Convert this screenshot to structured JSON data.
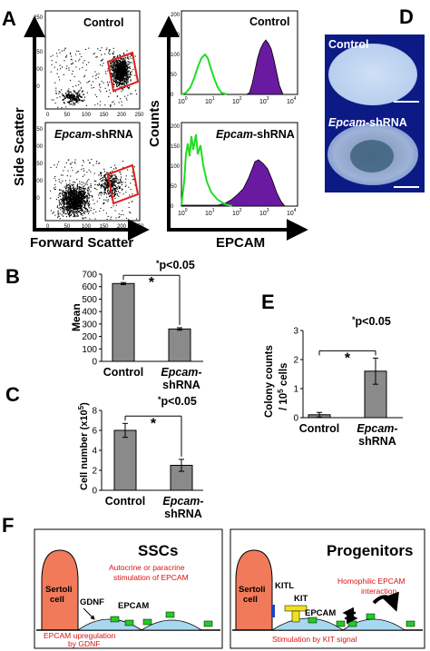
{
  "panels": {
    "A": "A",
    "B": "B",
    "C": "C",
    "D": "D",
    "E": "E",
    "F": "F"
  },
  "scatter": {
    "y_label": "Side Scatter",
    "x_label": "Forward Scatter",
    "top_label": "Control",
    "bottom_label_italic": "Epcam",
    "bottom_label_rest": "-shRNA",
    "ticks": [
      "0",
      "50",
      "100",
      "150",
      "200",
      "250"
    ]
  },
  "histogram": {
    "y_label": "Counts",
    "x_label": "EPCAM",
    "top_label": "Control",
    "bottom_label_italic": "Epcam",
    "bottom_label_rest": "-shRNA",
    "y_ticks": [
      "0",
      "50",
      "100",
      "150",
      "200"
    ],
    "x_ticks": [
      "10",
      "10",
      "10",
      "10",
      "10"
    ],
    "x_exps": [
      "0",
      "1",
      "2",
      "3",
      "4"
    ]
  },
  "photos": {
    "top_label": "Control",
    "bottom_label_italic": "Epcam",
    "bottom_label_rest": "-shRNA"
  },
  "chart_data": [
    {
      "type": "bar",
      "panel": "B",
      "ylabel": "Mean",
      "categories": [
        "Control",
        "Epcam-shRNA"
      ],
      "cat_line1": [
        "Control",
        "Epcam-"
      ],
      "cat_line2": [
        "",
        "shRNA"
      ],
      "values": [
        625,
        260
      ],
      "errors": [
        8,
        10
      ],
      "ylim": [
        0,
        700
      ],
      "yticks": [
        "0",
        "100",
        "200",
        "300",
        "400",
        "500",
        "600",
        "700"
      ],
      "bar_color": "#8a8a8a",
      "annotation": "p<0.05",
      "star": "*"
    },
    {
      "type": "bar",
      "panel": "C",
      "ylabel": "Cell number (x10",
      "ylabel_exp": "5",
      "ylabel_end": ")",
      "categories": [
        "Control",
        "Epcam-shRNA"
      ],
      "cat_line1": [
        "Control",
        "Epcam-"
      ],
      "cat_line2": [
        "",
        "shRNA"
      ],
      "values": [
        6.0,
        2.5
      ],
      "errors": [
        0.7,
        0.6
      ],
      "ylim": [
        0,
        8
      ],
      "yticks": [
        "0",
        "2",
        "4",
        "6",
        "8"
      ],
      "bar_color": "#8a8a8a",
      "annotation": "p<0.05",
      "star": "*"
    },
    {
      "type": "bar",
      "panel": "E",
      "ylabel_line1": "Colony counts",
      "ylabel_line2": "/ 10",
      "ylabel_exp": "5",
      "ylabel_end": " cells",
      "categories": [
        "Control",
        "Epcam-shRNA"
      ],
      "cat_line1": [
        "Control",
        "Epcam-"
      ],
      "cat_line2": [
        "",
        "shRNA"
      ],
      "values": [
        0.1,
        1.6
      ],
      "errors": [
        0.08,
        0.45
      ],
      "ylim": [
        0,
        3
      ],
      "yticks": [
        "0",
        "1",
        "2",
        "3"
      ],
      "bar_color": "#8a8a8a",
      "annotation": "p<0.05",
      "star": "*"
    }
  ],
  "diagram": {
    "left": {
      "title": "SSCs",
      "sertoli": [
        "Sertoli",
        "cell"
      ],
      "gdnf": "GDNF",
      "epcam": "EPCAM",
      "note_top": [
        "Autocrine or paracrine",
        "stimulation of EPCAM"
      ],
      "note_bottom": [
        "EPCAM upregulation",
        "by GDNF"
      ]
    },
    "right": {
      "title": "Progenitors",
      "sertoli": [
        "Sertoli",
        "cell"
      ],
      "kitl": "KITL",
      "kit": "KIT",
      "epcam": "EPCAM",
      "note_top": [
        "Homophilic  EPCAM",
        "interaction"
      ],
      "note_bottom": [
        "Stimulation by KIT signal"
      ]
    }
  },
  "colors": {
    "gate": "#e02020",
    "green_line": "#22dd22",
    "purple_fill": "#6a1aa0",
    "sertoli": "#f07a5a",
    "cell_blue": "#a8d8f0",
    "epcam_green": "#22cc22",
    "red_note": "#dd1111",
    "kit_yellow": "#f0e020"
  }
}
